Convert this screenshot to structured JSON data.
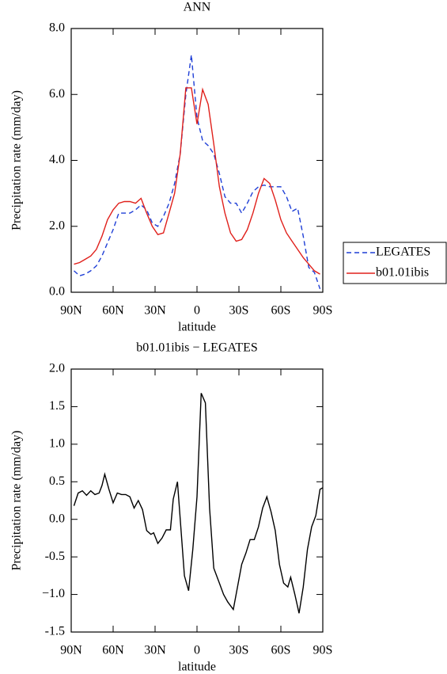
{
  "chart_data": [
    {
      "type": "line",
      "title": "ANN",
      "x_label": "latitude",
      "y_label": "Precipitation rate (mm/day)",
      "x": [
        88,
        84,
        80,
        76,
        72,
        68,
        64,
        60,
        56,
        52,
        48,
        44,
        40,
        36,
        32,
        28,
        24,
        20,
        16,
        12,
        8,
        4,
        0,
        -4,
        -8,
        -12,
        -16,
        -20,
        -24,
        -28,
        -32,
        -36,
        -40,
        -44,
        -48,
        -52,
        -56,
        -60,
        -64,
        -68,
        -72,
        -76,
        -80,
        -84,
        -88
      ],
      "series": [
        {
          "name": "LEGATES",
          "color": "#1f3fd6",
          "dash": "dashed",
          "values": [
            0.65,
            0.5,
            0.55,
            0.65,
            0.8,
            1.1,
            1.5,
            1.9,
            2.4,
            2.4,
            2.4,
            2.5,
            2.65,
            2.5,
            2.1,
            2.0,
            2.3,
            2.7,
            3.3,
            4.2,
            6.0,
            7.2,
            5.3,
            4.6,
            4.45,
            4.2,
            3.6,
            2.9,
            2.7,
            2.7,
            2.4,
            2.7,
            3.05,
            3.2,
            3.25,
            3.2,
            3.2,
            3.2,
            2.9,
            2.45,
            2.55,
            1.7,
            0.75,
            0.6,
            0.1
          ]
        },
        {
          "name": "b01.01ibis",
          "color": "#e0201b",
          "dash": "solid",
          "values": [
            0.85,
            0.9,
            1.0,
            1.1,
            1.3,
            1.7,
            2.2,
            2.5,
            2.7,
            2.75,
            2.75,
            2.7,
            2.85,
            2.4,
            2.0,
            1.75,
            1.8,
            2.4,
            3.0,
            4.2,
            6.2,
            6.2,
            5.1,
            6.15,
            5.7,
            4.5,
            3.2,
            2.4,
            1.8,
            1.55,
            1.6,
            1.9,
            2.4,
            3.0,
            3.45,
            3.3,
            2.8,
            2.2,
            1.8,
            1.55,
            1.3,
            1.05,
            0.85,
            0.65,
            0.55
          ]
        }
      ],
      "xlim": [
        90,
        -90
      ],
      "xticks": [
        {
          "value": 90,
          "label": "90N"
        },
        {
          "value": 60,
          "label": "60N"
        },
        {
          "value": 30,
          "label": "30N"
        },
        0,
        {
          "value": -30,
          "label": "30S"
        },
        {
          "value": -60,
          "label": "60S"
        },
        {
          "value": -90,
          "label": "90S"
        }
      ],
      "ylim": [
        0,
        8
      ],
      "yticks": [
        {
          "value": 0,
          "label": "0.0"
        },
        {
          "value": 2,
          "label": "2.0"
        },
        {
          "value": 4,
          "label": "4.0"
        },
        {
          "value": 6,
          "label": "6.0"
        },
        {
          "value": 8,
          "label": "8.0"
        }
      ],
      "legend": "right"
    },
    {
      "type": "line",
      "title": "b01.01ibis  −  LEGATES",
      "x_label": "latitude",
      "y_label": "Precipitation rate (mm/day)",
      "x": [
        88,
        85,
        82,
        79,
        76,
        73,
        70,
        68,
        66,
        63,
        60,
        57,
        54,
        51,
        48,
        45,
        42,
        39,
        36,
        33,
        31,
        28,
        25,
        22,
        19,
        17,
        14,
        9,
        6,
        3,
        0,
        -3,
        -6,
        -9,
        -12,
        -16,
        -19,
        -22,
        -26,
        -29,
        -32,
        -35,
        -38,
        -41,
        -44,
        -47,
        -50,
        -53,
        -56,
        -59,
        -62,
        -65,
        -67,
        -70,
        -73,
        -76,
        -79,
        -82,
        -85,
        -88,
        -90
      ],
      "values": [
        0.18,
        0.35,
        0.38,
        0.32,
        0.38,
        0.33,
        0.35,
        0.45,
        0.6,
        0.4,
        0.22,
        0.35,
        0.33,
        0.33,
        0.3,
        0.15,
        0.25,
        0.13,
        -0.15,
        -0.2,
        -0.18,
        -0.32,
        -0.25,
        -0.14,
        -0.14,
        0.27,
        0.5,
        -0.75,
        -0.95,
        -0.4,
        0.3,
        1.68,
        1.55,
        0.15,
        -0.65,
        -0.85,
        -1.0,
        -1.1,
        -1.2,
        -0.9,
        -0.6,
        -0.45,
        -0.27,
        -0.27,
        -0.1,
        0.15,
        0.3,
        0.1,
        -0.15,
        -0.6,
        -0.85,
        -0.9,
        -0.77,
        -1.0,
        -1.25,
        -0.9,
        -0.4,
        -0.1,
        0.05,
        0.4,
        0.42
      ],
      "color": "#000000",
      "xlim": [
        90,
        -90
      ],
      "xticks": [
        {
          "value": 90,
          "label": "90N"
        },
        {
          "value": 60,
          "label": "60N"
        },
        {
          "value": 30,
          "label": "30N"
        },
        0,
        {
          "value": -30,
          "label": "30S"
        },
        {
          "value": -60,
          "label": "60S"
        },
        {
          "value": -90,
          "label": "90S"
        }
      ],
      "ylim": [
        -1.5,
        2.0
      ],
      "yticks": [
        -1.5,
        {
          "value": -1.0,
          "label": "−1.0"
        },
        -0.5,
        {
          "value": 0,
          "label": "0.0"
        },
        0.5,
        {
          "value": 1.0,
          "label": "1.0"
        },
        1.5,
        {
          "value": 2.0,
          "label": "2.0"
        }
      ]
    }
  ]
}
